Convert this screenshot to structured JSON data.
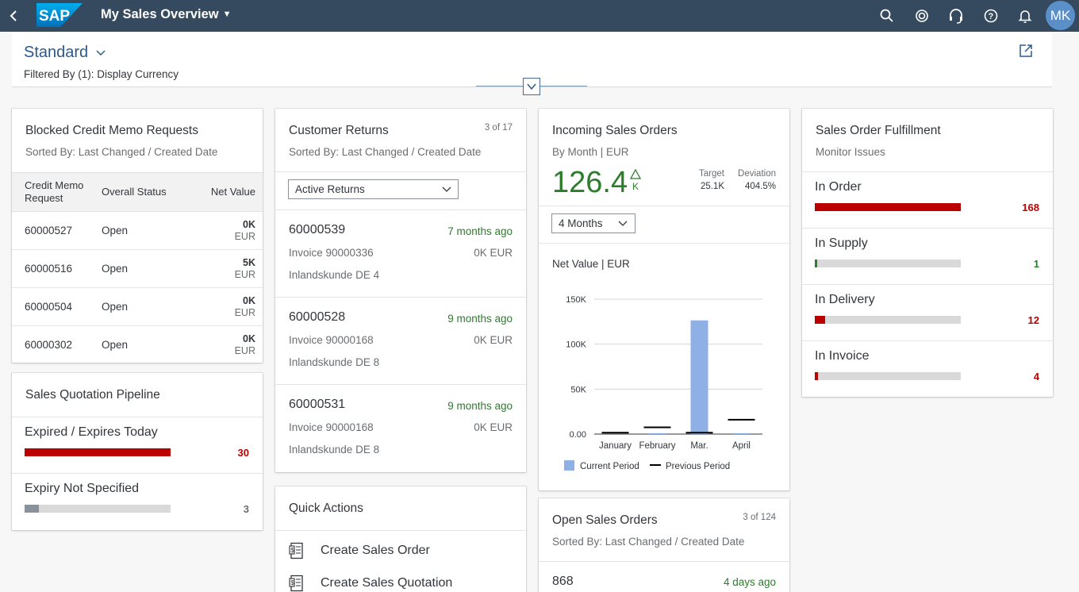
{
  "shell": {
    "logo": "SAP",
    "app_title": "My Sales Overview",
    "avatar_initials": "MK",
    "icons": [
      "back-icon",
      "search-icon",
      "copilot-icon",
      "headset-icon",
      "help-icon",
      "notifications-icon"
    ]
  },
  "header": {
    "variant": "Standard",
    "filtered_by": "Filtered By (1): Display Currency"
  },
  "blocked_memo": {
    "title": "Blocked Credit Memo Requests",
    "subtitle": "Sorted By: Last Changed / Created Date",
    "columns": [
      "Credit Memo Request",
      "Overall Status",
      "Net Value"
    ],
    "rows": [
      {
        "id": "60000527",
        "status": "Open",
        "value": "0K",
        "unit": "EUR"
      },
      {
        "id": "60000516",
        "status": "Open",
        "value": "5K",
        "unit": "EUR"
      },
      {
        "id": "60000504",
        "status": "Open",
        "value": "0K",
        "unit": "EUR"
      },
      {
        "id": "60000302",
        "status": "Open",
        "value": "0K",
        "unit": "EUR"
      }
    ]
  },
  "quotation": {
    "title": "Sales Quotation Pipeline",
    "items": [
      {
        "label": "Expired / Expires Today",
        "value": "30",
        "fill": 1.0,
        "color": "#bb0000"
      },
      {
        "label": "Expiry Not Specified",
        "value": "3",
        "fill": 0.1,
        "color": "#89919a"
      }
    ]
  },
  "returns": {
    "title": "Customer Returns",
    "count": "3 of 17",
    "subtitle": "Sorted By: Last Changed / Created Date",
    "filter": "Active Returns",
    "items": [
      {
        "id": "60000539",
        "ago": "7 months ago",
        "invoice": "Invoice 90000336",
        "amount": "0K EUR",
        "customer": "Inlandskunde DE 4"
      },
      {
        "id": "60000528",
        "ago": "9 months ago",
        "invoice": "Invoice 90000168",
        "amount": "0K EUR",
        "customer": "Inlandskunde DE 8"
      },
      {
        "id": "60000531",
        "ago": "9 months ago",
        "invoice": "Invoice 90000168",
        "amount": "0K EUR",
        "customer": "Inlandskunde DE 8"
      }
    ]
  },
  "quick_actions": {
    "title": "Quick Actions",
    "items": [
      "Create Sales Order",
      "Create Sales Quotation"
    ]
  },
  "incoming": {
    "title": "Incoming Sales Orders",
    "subtitle": "By Month | EUR",
    "kpi": "126.4",
    "kpi_unit": "K",
    "target_label": "Target",
    "target_value": "25.1K",
    "deviation_label": "Deviation",
    "deviation_value": "404.5%",
    "period": "4 Months",
    "chart_title": "Net Value | EUR",
    "kpi_color": "#2b7d2b"
  },
  "open_orders": {
    "title": "Open Sales Orders",
    "count": "3 of 124",
    "subtitle": "Sorted By: Last Changed / Created Date",
    "first_id": "868",
    "first_ago": "4 days ago"
  },
  "fulfillment": {
    "title": "Sales Order Fulfillment",
    "subtitle": "Monitor Issues",
    "items": [
      {
        "label": "In Order",
        "value": "168",
        "fill": 1.0,
        "color": "#bb0000"
      },
      {
        "label": "In Supply",
        "value": "1",
        "fill": 0.015,
        "color": "#2b7d2b"
      },
      {
        "label": "In Delivery",
        "value": "12",
        "fill": 0.07,
        "color": "#bb0000"
      },
      {
        "label": "In Invoice",
        "value": "4",
        "fill": 0.02,
        "color": "#bb0000"
      }
    ]
  },
  "chart_data": {
    "type": "bar",
    "title": "Net Value | EUR",
    "categories": [
      "January",
      "February",
      "Mar.",
      "April"
    ],
    "series": [
      {
        "name": "Current Period",
        "values": [
          0,
          1000,
          126400,
          1000
        ],
        "color": "#8fb0e4"
      },
      {
        "name": "Previous Period",
        "values": [
          1500,
          7500,
          1500,
          16000
        ],
        "color": "#000000"
      }
    ],
    "y_ticks": [
      "0.00",
      "50K",
      "100K",
      "150K"
    ],
    "ylim": [
      0,
      150000
    ],
    "grid": true,
    "legend": "bottom"
  }
}
